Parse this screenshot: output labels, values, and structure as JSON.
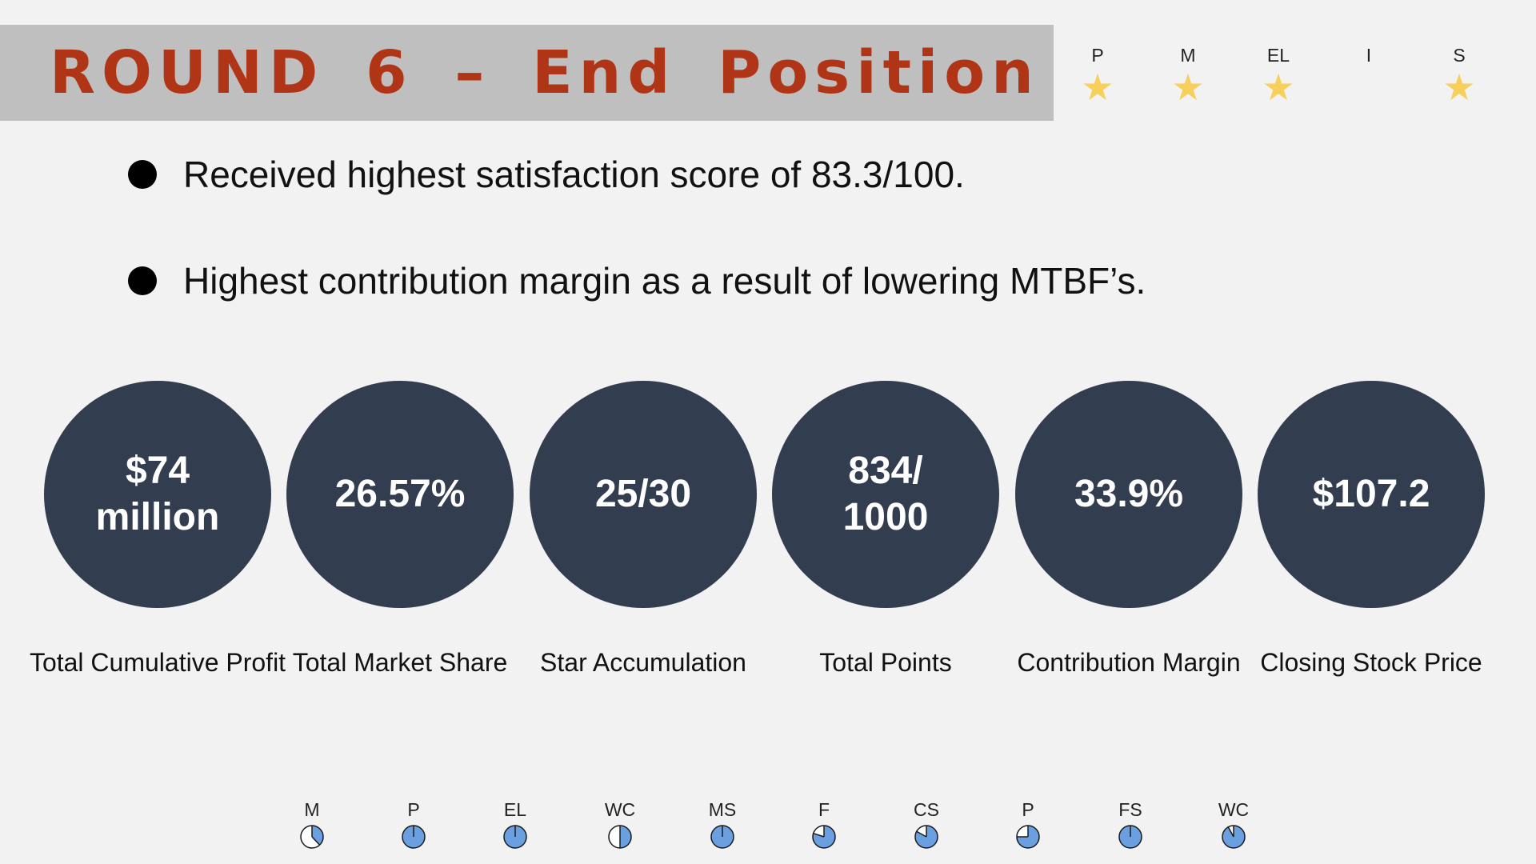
{
  "title": "ROUND  6  –  End  Position",
  "stars": [
    {
      "label": "P",
      "earned": true
    },
    {
      "label": "M",
      "earned": true
    },
    {
      "label": "EL",
      "earned": true
    },
    {
      "label": "I",
      "earned": false
    },
    {
      "label": "S",
      "earned": true
    }
  ],
  "star_glyph": "★",
  "bullets": [
    "Received highest satisfaction score of 83.3/100.",
    "Highest contribution margin as a result of lowering MTBF’s."
  ],
  "kpis": [
    {
      "value": "$74 million",
      "label": "Total Cumulative Profit"
    },
    {
      "value": "26.57%",
      "label": "Total Market Share"
    },
    {
      "value": "25/30",
      "label": "Star Accumulation"
    },
    {
      "value": "834/ 1000",
      "label": "Total Points"
    },
    {
      "value": "33.9%",
      "label": "Contribution Margin"
    },
    {
      "value": "$107.2",
      "label": "Closing Stock Price"
    }
  ],
  "colors": {
    "background": "#f2f2f2",
    "title_bar": "#bfbfbf",
    "title_text": "#b03516",
    "star": "#f7cf5b",
    "kpi_circle": "#333d50",
    "pie_fill": "#6a9fe0",
    "pie_empty": "#ffffff"
  },
  "progress": [
    {
      "label": "M",
      "fraction": 0.38
    },
    {
      "label": "P",
      "fraction": 1.0
    },
    {
      "label": "EL",
      "fraction": 1.0
    },
    {
      "label": "WC",
      "fraction": 0.5
    },
    {
      "label": "MS",
      "fraction": 1.0
    },
    {
      "label": "F",
      "fraction": 0.8
    },
    {
      "label": "CS",
      "fraction": 0.83
    },
    {
      "label": "P",
      "fraction": 0.75
    },
    {
      "label": "FS",
      "fraction": 1.0
    },
    {
      "label": "WC",
      "fraction": 0.92
    }
  ]
}
